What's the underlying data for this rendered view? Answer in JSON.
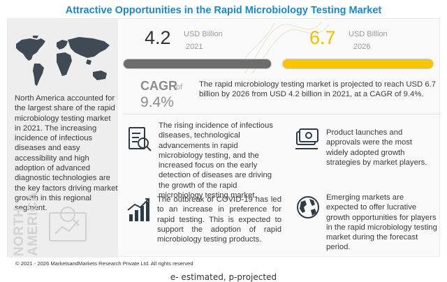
{
  "title": "Attractive Opportunities in the Rapid Microbiology Testing Market",
  "left_panel": {
    "text": "North America accounted for the largest share of the rapid microbiology testing market in 2021. The increasing incidence of infectious diseases and easy accessibility and high adoption of advanced diagnostic technologies are the key factors driving market growth in this regional segment.",
    "watermark_line1": "NORTH",
    "watermark_line2": "AMERICA"
  },
  "stats": {
    "start_value": "4.2",
    "start_unit": "USD Billion",
    "start_year": "2021",
    "end_value": "6.7",
    "end_unit": "USD Billion",
    "end_year": "2026",
    "start_bar_color": "#6d6d6d",
    "end_bar_color": "#f9c400"
  },
  "cagr": {
    "label": "CAGR",
    "of_text": "of",
    "value": "9.4%",
    "text": "The rapid microbiology testing market is projected to reach USD 6.7 billion by 2026 from USD 4.2 billion in 2021, at a CAGR of 9.4%."
  },
  "drivers": [
    {
      "icon": "research-document-icon",
      "text": "The rising incidence of infectious diseases, technological advancements in rapid microbiology testing, and the increased focus on the early detection of diseases are driving the growth of the rapid microbiology testing market."
    },
    {
      "icon": "growth-chart-icon",
      "text": "The outbreak of COVID-19 has led to an increase in preference for rapid testing. This is expected to support the adoption of rapid microbiology testing products."
    },
    {
      "icon": "product-launch-icon",
      "text": "Product launches and approvals were the most widely adopted growth strategies by market players."
    },
    {
      "icon": "global-markets-icon",
      "text": "Emerging markets are expected to offer lucrative growth opportunities for players in the rapid microbiology testing market during the forecast period."
    }
  ],
  "copyright": "© 2021 - 2026 MarketsandMarkets Research Private Ltd. All rights reserved",
  "footnote": "e- estimated, p-projected"
}
